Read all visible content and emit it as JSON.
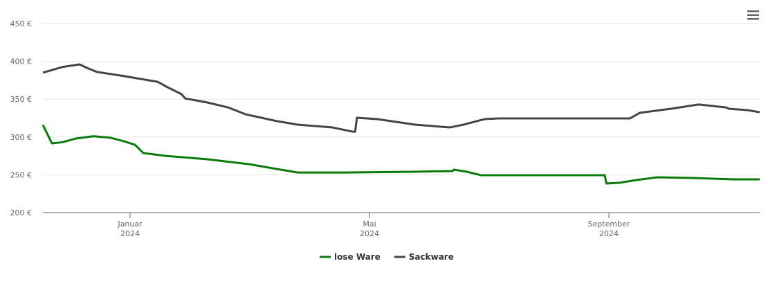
{
  "chart_data": {
    "type": "line",
    "xlim": [
      -0.457,
      11.52
    ],
    "xticks": [
      {
        "value": 1,
        "label": "Januar 2024"
      },
      {
        "value": 5,
        "label": "Mai 2024"
      },
      {
        "value": 9,
        "label": "September 2024"
      }
    ],
    "ylim": [
      200,
      450
    ],
    "yticks": [
      {
        "value": 200,
        "label": "200 €"
      },
      {
        "value": 250,
        "label": "250 €"
      },
      {
        "value": 300,
        "label": "300 €"
      },
      {
        "value": 350,
        "label": "350 €"
      },
      {
        "value": 400,
        "label": "400 €"
      },
      {
        "value": 450,
        "label": "450 €"
      }
    ],
    "grid": true,
    "legend": "bottom",
    "series": [
      {
        "name": "lose Ware",
        "color": "#0a7a0a",
        "x": [
          -0.457,
          -0.306,
          -0.133,
          0.098,
          0.387,
          0.676,
          0.908,
          1.081,
          1.22,
          1.6,
          2.29,
          2.99,
          3.45,
          3.8,
          4.61,
          5.76,
          6.39,
          6.41,
          6.63,
          6.86,
          8.08,
          8.93,
          8.96,
          9.17,
          9.46,
          9.81,
          10.39,
          11.08,
          11.52
        ],
        "values": [
          316,
          291.6,
          293,
          298,
          301,
          299,
          294,
          289.7,
          278.8,
          275,
          270.5,
          264,
          257.7,
          253,
          253,
          254,
          255,
          256.8,
          254,
          249.5,
          249.5,
          249.5,
          238.5,
          239.4,
          243,
          246.7,
          245.8,
          244,
          244
        ]
      },
      {
        "name": "Sackware",
        "color": "#444444",
        "x": [
          -0.457,
          -0.133,
          0.156,
          0.272,
          0.445,
          0.908,
          1.46,
          1.6,
          1.86,
          1.92,
          2.29,
          2.64,
          2.93,
          3.45,
          3.8,
          4.38,
          4.72,
          4.76,
          4.79,
          5.13,
          5.76,
          6.34,
          6.57,
          6.92,
          7.15,
          8.08,
          9.35,
          9.52,
          10.04,
          10.5,
          10.97,
          11.0,
          11.31,
          11.52
        ],
        "values": [
          385,
          392.5,
          396,
          391.6,
          386,
          380.4,
          373,
          366.8,
          356.6,
          351,
          345.6,
          339,
          330,
          321,
          316.3,
          312.6,
          307,
          307,
          325.5,
          323.6,
          316.3,
          312.6,
          316.3,
          323.6,
          324.5,
          324.5,
          324.5,
          332,
          337.4,
          343,
          339,
          337.4,
          335.5,
          332.8
        ]
      }
    ]
  }
}
